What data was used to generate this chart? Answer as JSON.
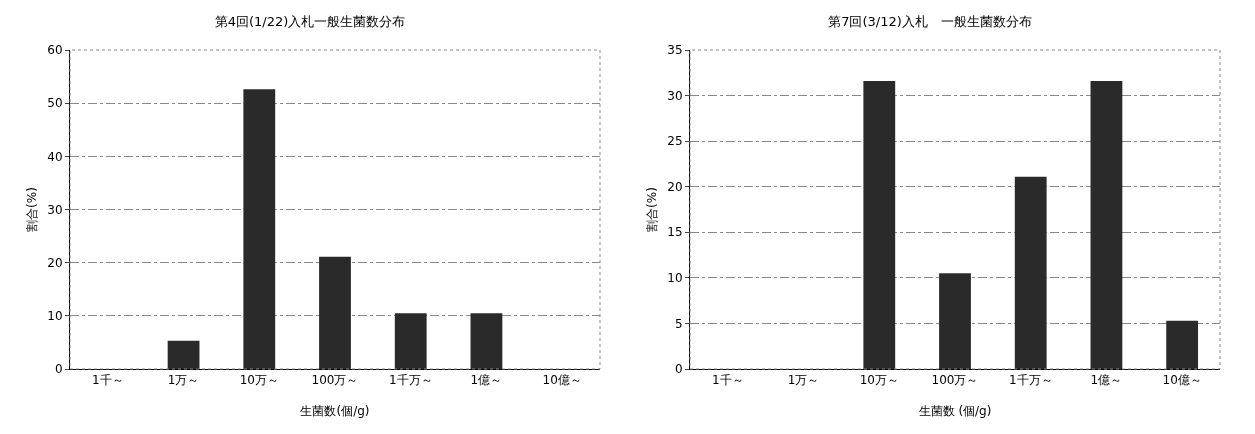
{
  "chart_data": [
    {
      "type": "bar",
      "title": "第4回(1/22)入札一般生菌数分布",
      "xlabel": "生菌数(個/g)",
      "ylabel": "割合(%)",
      "categories": [
        "1千～",
        "1万～",
        "10万～",
        "100万～",
        "1千万～",
        "1億～",
        "10億～"
      ],
      "values": [
        0,
        5.3,
        52.6,
        21.1,
        10.5,
        10.5,
        0
      ],
      "color": "#2a2a2a",
      "ylim": [
        0,
        60
      ],
      "yticks": [
        0,
        10,
        20,
        30,
        40,
        50,
        60
      ],
      "grid": "y",
      "legend": false
    },
    {
      "type": "bar",
      "title": "第7回(3/12)入札　一般生菌数分布",
      "xlabel": "生菌数 (個/g)",
      "ylabel": "割合(%)",
      "categories": [
        "1千～",
        "1万～",
        "10万～",
        "100万～",
        "1千万～",
        "1億～",
        "10億～"
      ],
      "values": [
        0,
        0,
        31.6,
        10.5,
        21.1,
        31.6,
        5.3
      ],
      "color": "#2a2a2a",
      "ylim": [
        0,
        35
      ],
      "yticks": [
        0,
        5,
        10,
        15,
        20,
        25,
        30,
        35
      ],
      "grid": "y",
      "legend": false
    }
  ]
}
